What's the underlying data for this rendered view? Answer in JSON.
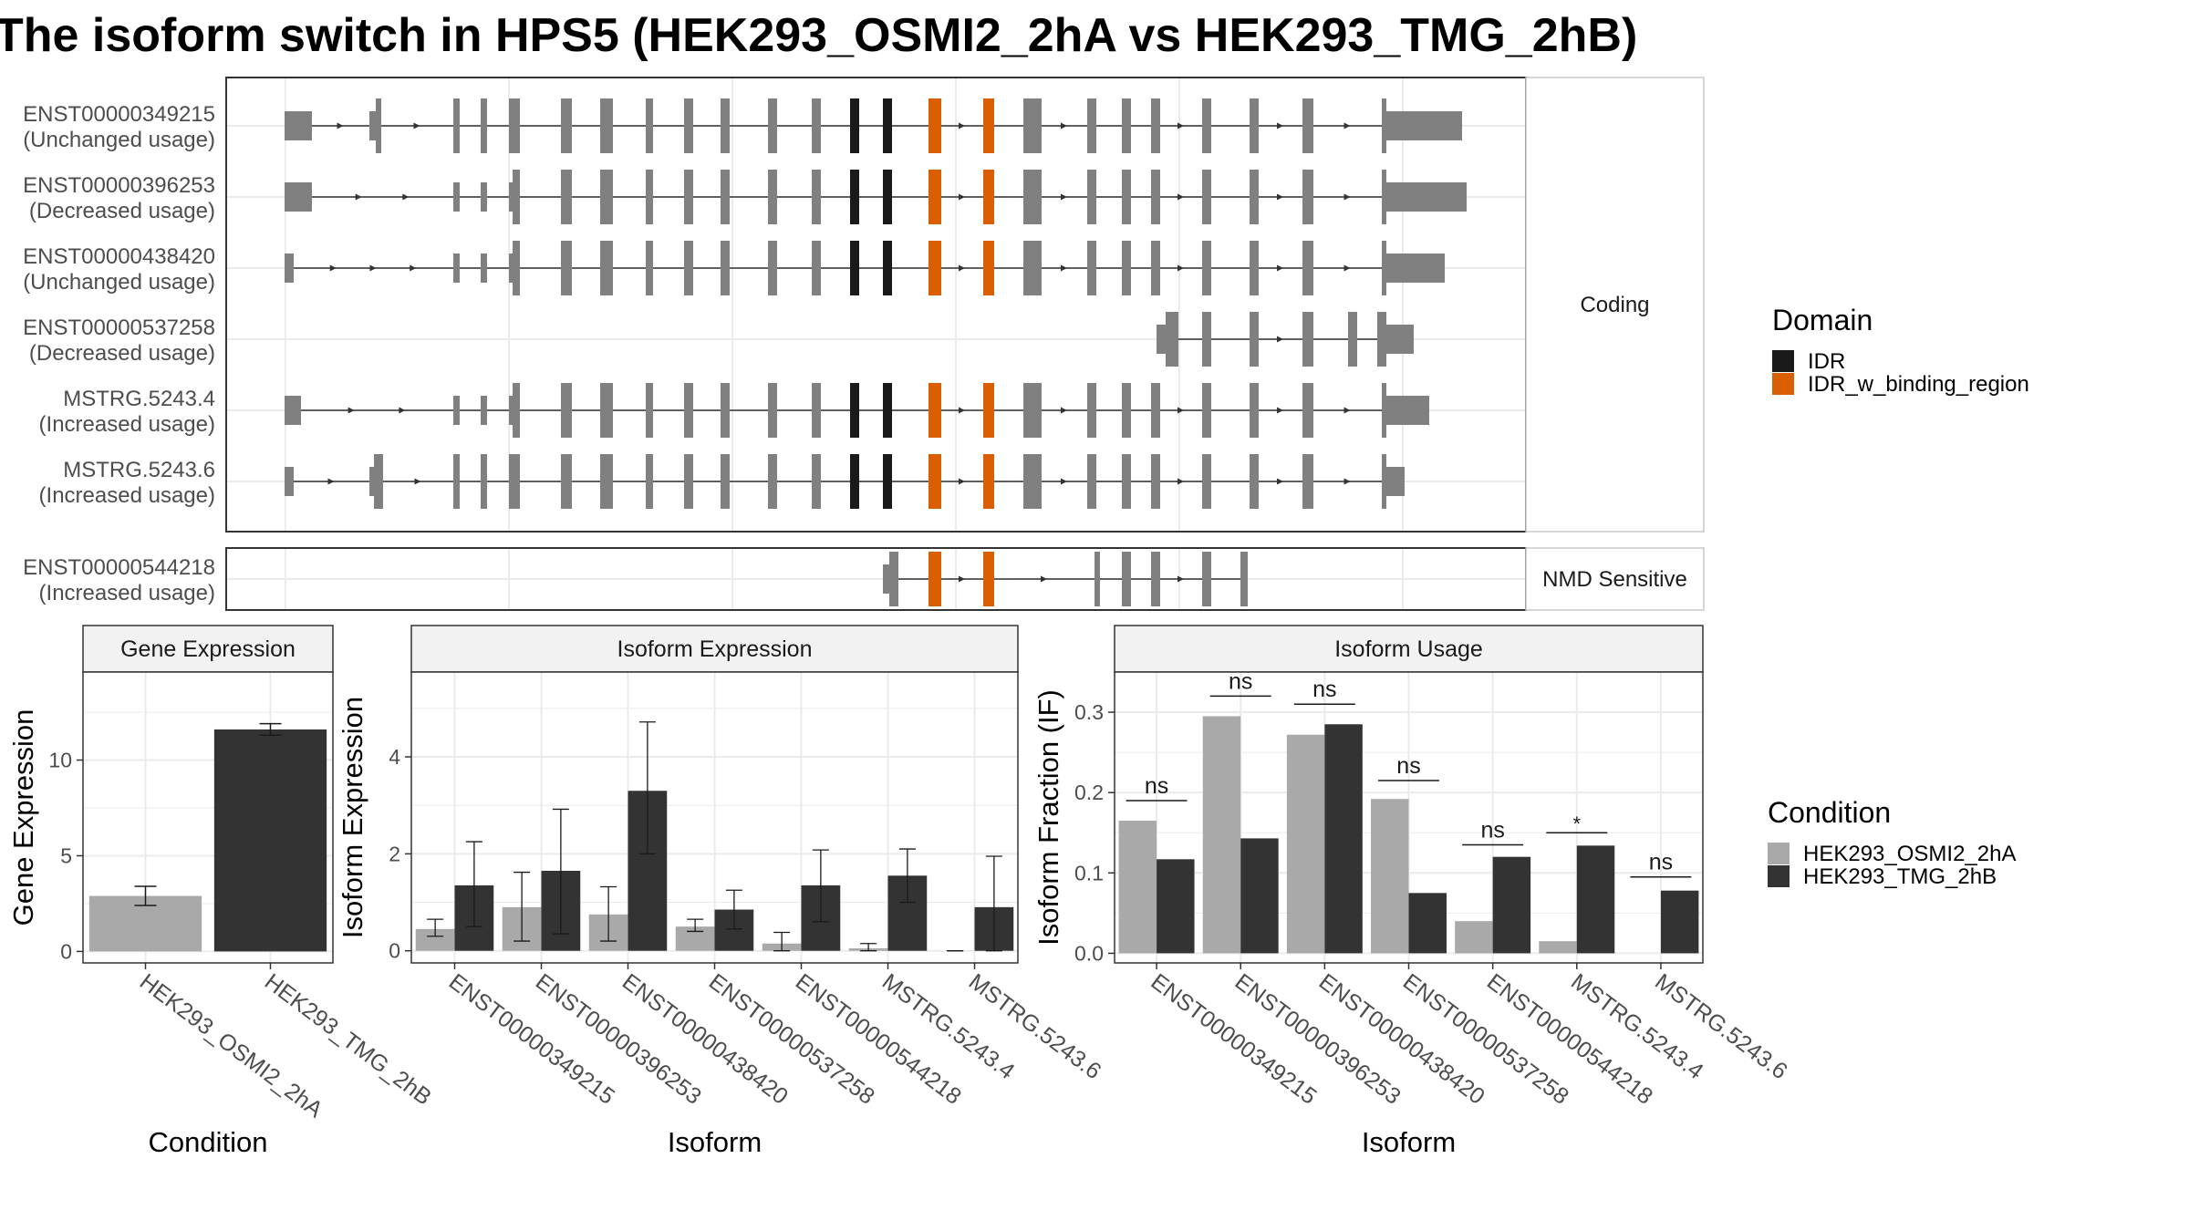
{
  "title": "The isoform switch in HPS5 (HEK293_OSMI2_2hA vs HEK293_TMG_2hB)",
  "colors": {
    "exon": "#808080",
    "IDR": "#1a1a1a",
    "IDR_w_binding_region": "#d95f02",
    "cond1": "#a9a9a9",
    "cond2": "#333333",
    "grid": "#ebebeb",
    "strip": "#f2f2f2"
  },
  "structure": {
    "facets": [
      {
        "label": "Coding",
        "isoforms": [
          {
            "id": "ENST00000349215",
            "usage": "(Unchanged usage)"
          },
          {
            "id": "ENST00000396253",
            "usage": "(Decreased usage)"
          },
          {
            "id": "ENST00000438420",
            "usage": "(Unchanged usage)"
          },
          {
            "id": "ENST00000537258",
            "usage": "(Decreased usage)"
          },
          {
            "id": "MSTRG.5243.4",
            "usage": "(Increased usage)"
          },
          {
            "id": "MSTRG.5243.6",
            "usage": "(Increased usage)"
          }
        ]
      },
      {
        "label": "NMD Sensitive",
        "isoforms": [
          {
            "id": "ENST00000544218",
            "usage": "(Increased usage)"
          }
        ]
      }
    ],
    "legend": {
      "title": "Domain",
      "items": [
        {
          "label": "IDR",
          "color": "#1a1a1a"
        },
        {
          "label": "IDR_w_binding_region",
          "color": "#d95f02"
        }
      ]
    }
  },
  "condition_legend": {
    "title": "Condition",
    "items": [
      {
        "label": "HEK293_OSMI2_2hA",
        "color": "#a9a9a9"
      },
      {
        "label": "HEK293_TMG_2hB",
        "color": "#333333"
      }
    ]
  },
  "chart_data": [
    {
      "type": "bar",
      "title": "Gene Expression",
      "xlabel": "Condition",
      "ylabel": "Gene Expression",
      "categories": [
        "HEK293_OSMI2_2hA",
        "HEK293_TMG_2hB"
      ],
      "values": [
        2.9,
        11.6
      ],
      "errors": [
        [
          2.4,
          3.4
        ],
        [
          11.3,
          11.9
        ]
      ],
      "yticks": [
        0,
        5,
        10
      ],
      "ylim": [
        -0.6,
        14.6
      ]
    },
    {
      "type": "bar",
      "title": "Isoform Expression",
      "xlabel": "Isoform",
      "ylabel": "Isoform Expression",
      "categories": [
        "ENST00000349215",
        "ENST00000396253",
        "ENST00000438420",
        "ENST00000537258",
        "ENST00000544218",
        "MSTRG.5243.4",
        "MSTRG.5243.6"
      ],
      "series": [
        {
          "name": "HEK293_OSMI2_2hA",
          "values": [
            0.45,
            0.9,
            0.75,
            0.5,
            0.15,
            0.05,
            0.0
          ],
          "errors": [
            [
              0.3,
              0.65
            ],
            [
              0.2,
              1.62
            ],
            [
              0.2,
              1.32
            ],
            [
              0.4,
              0.65
            ],
            [
              0.0,
              0.38
            ],
            [
              0.0,
              0.15
            ],
            [
              0.0,
              0.0
            ]
          ]
        },
        {
          "name": "HEK293_TMG_2hB",
          "values": [
            1.35,
            1.65,
            3.3,
            0.85,
            1.35,
            1.55,
            0.9
          ],
          "errors": [
            [
              0.5,
              2.25
            ],
            [
              0.35,
              2.92
            ],
            [
              2.0,
              4.72
            ],
            [
              0.45,
              1.25
            ],
            [
              0.6,
              2.08
            ],
            [
              1.0,
              2.1
            ],
            [
              0.0,
              1.95
            ]
          ]
        }
      ],
      "yticks": [
        0,
        2,
        4
      ],
      "ylim": [
        -0.25,
        5.75
      ]
    },
    {
      "type": "bar",
      "title": "Isoform Usage",
      "xlabel": "Isoform",
      "ylabel": "Isoform Fraction (IF)",
      "categories": [
        "ENST00000349215",
        "ENST00000396253",
        "ENST00000438420",
        "ENST00000537258",
        "ENST00000544218",
        "MSTRG.5243.4",
        "MSTRG.5243.6"
      ],
      "series": [
        {
          "name": "HEK293_OSMI2_2hA",
          "values": [
            0.165,
            0.295,
            0.272,
            0.192,
            0.04,
            0.015,
            0.0
          ]
        },
        {
          "name": "HEK293_TMG_2hB",
          "values": [
            0.117,
            0.143,
            0.285,
            0.075,
            0.12,
            0.134,
            0.078
          ]
        }
      ],
      "significance": [
        "ns",
        "ns",
        "ns",
        "ns",
        "ns",
        "*",
        "ns"
      ],
      "sig_levels": [
        0.19,
        0.32,
        0.31,
        0.215,
        0.135,
        0.15,
        0.095
      ],
      "yticks": [
        0.0,
        0.1,
        0.2,
        0.3
      ],
      "ylim": [
        -0.012,
        0.35
      ]
    }
  ]
}
